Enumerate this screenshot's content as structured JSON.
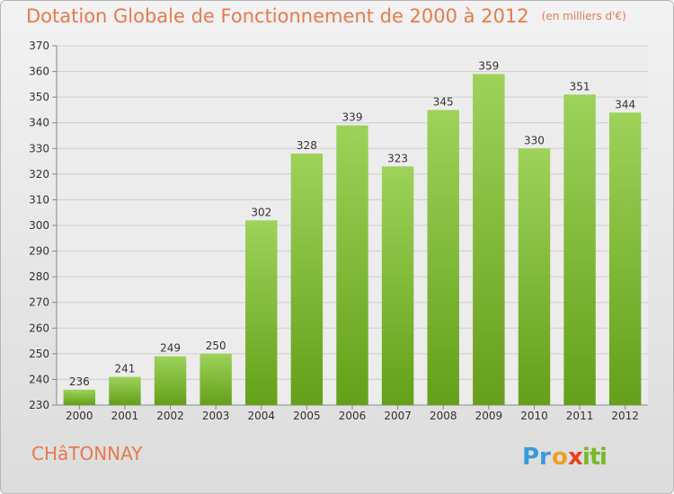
{
  "chart_data": {
    "type": "bar",
    "title": "Dotation Globale de Fonctionnement de 2000 à 2012",
    "unit_label": "(en milliers d'€)",
    "categories": [
      "2000",
      "2001",
      "2002",
      "2003",
      "2004",
      "2005",
      "2006",
      "2007",
      "2008",
      "2009",
      "2010",
      "2011",
      "2012"
    ],
    "values": [
      236,
      241,
      249,
      250,
      302,
      328,
      339,
      323,
      345,
      359,
      330,
      351,
      344
    ],
    "ylim": [
      230,
      370
    ],
    "yticks": [
      230,
      240,
      250,
      260,
      270,
      280,
      290,
      300,
      310,
      320,
      330,
      340,
      350,
      360,
      370
    ],
    "grid": true,
    "bar_color_top": "#9ed25a",
    "bar_color_bottom": "#64a019"
  },
  "commune": "CHâTONNAY",
  "logo": {
    "letters": [
      "P",
      "r",
      "o",
      "x",
      "i",
      "t",
      "i"
    ],
    "colors": [
      "#3a9ad9",
      "#3a9ad9",
      "#f0a020",
      "#e8401c",
      "#7ab829",
      "#7ab829",
      "#7ab829"
    ]
  }
}
